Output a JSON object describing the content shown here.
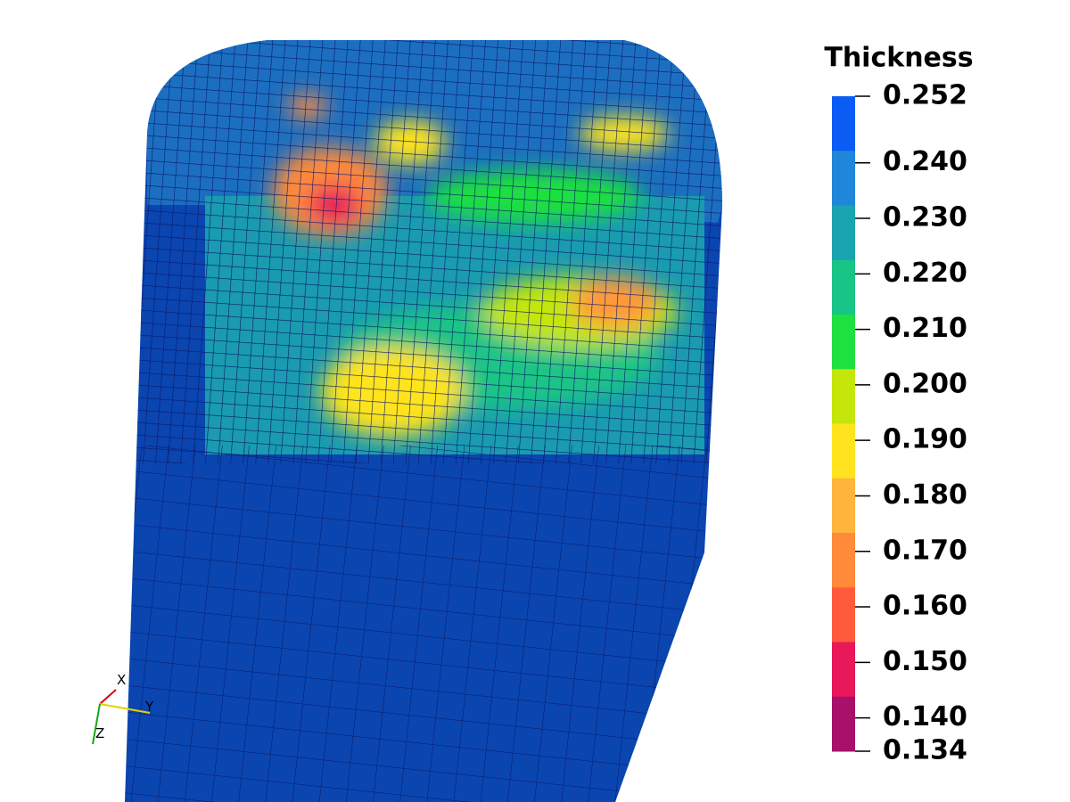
{
  "legend": {
    "title": "Thickness",
    "range": [
      0.134,
      0.252
    ],
    "ticks": [
      0.252,
      {
        "value": 0.24,
        "label": "0.240"
      },
      {
        "value": 0.23,
        "label": "0.230"
      },
      {
        "value": 0.22,
        "label": "0.220"
      },
      {
        "value": 0.21,
        "label": "0.210"
      },
      {
        "value": 0.2,
        "label": "0.200"
      },
      {
        "value": 0.19,
        "label": "0.190"
      },
      {
        "value": 0.18,
        "label": "0.180"
      },
      {
        "value": 0.17,
        "label": "0.170"
      },
      {
        "value": 0.16,
        "label": "0.160"
      },
      {
        "value": 0.15,
        "label": "0.150"
      },
      {
        "value": 0.14,
        "label": "0.140"
      },
      0.134
    ],
    "colors": [
      "#0a5cf5",
      "#1f86d9",
      "#1aa3b0",
      "#18c486",
      "#1ee040",
      "#c5e60a",
      "#ffe31f",
      "#ffb43c",
      "#ff8a3a",
      "#ff5a3c",
      "#e8185a",
      "#a8106a"
    ]
  },
  "axes": {
    "labels": [
      "X",
      "Y",
      "Z"
    ]
  }
}
